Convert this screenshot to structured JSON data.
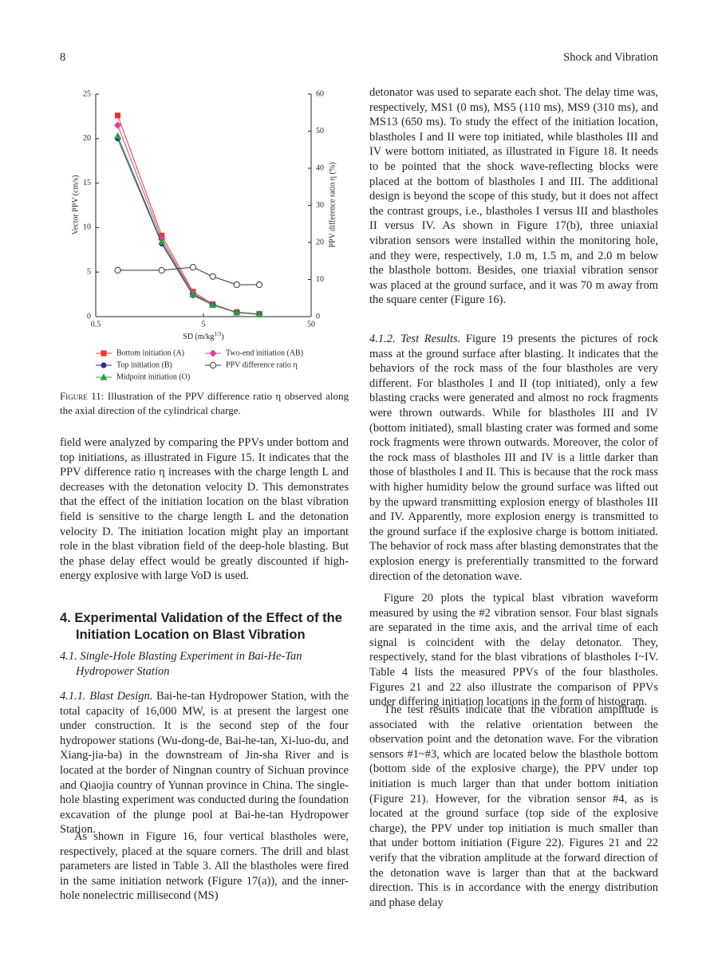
{
  "header": {
    "page_number": "8",
    "journal": "Shock and Vibration"
  },
  "chart_data": {
    "type": "line",
    "x_scale": "log",
    "y_label": "Vector PPV (cm/s)",
    "y2_label": "PPV difference ratio η (%)",
    "x_label": "SD (m/kg",
    "x_label_sup": "1/3",
    "x_label_end": ")",
    "x": [
      0.8,
      2.05,
      4.0,
      6.1,
      10.2,
      16.5
    ],
    "xlim": [
      0.5,
      50
    ],
    "xticks": [
      0.5,
      5,
      50
    ],
    "ylim": [
      0,
      25
    ],
    "yticks": [
      0,
      5,
      10,
      15,
      20,
      25
    ],
    "y2lim": [
      0,
      60
    ],
    "y2ticks": [
      0,
      10,
      20,
      30,
      40,
      50,
      60
    ],
    "series": [
      {
        "name": "Bottom initiation (A)",
        "color": "#e8372b",
        "marker": "square",
        "values": [
          22.6,
          9.1,
          2.8,
          1.4,
          0.5,
          0.3
        ]
      },
      {
        "name": "Two-end initiation (AB)",
        "color": "#e0409a",
        "marker": "diamond",
        "values": [
          21.5,
          8.7,
          2.6,
          1.35,
          0.48,
          0.28
        ]
      },
      {
        "name": "Top initiation (B)",
        "color": "#2b2f8a",
        "marker": "circle",
        "values": [
          20.0,
          8.2,
          2.4,
          1.3,
          0.45,
          0.25
        ]
      },
      {
        "name": "PPV difference ratio η",
        "color": "#333333",
        "marker": "open-circle",
        "axis": "y2",
        "values": [
          12.5,
          12.5,
          13.3,
          10.8,
          8.6,
          8.6
        ]
      },
      {
        "name": "Midpoint initiation (O)",
        "color": "#2e9e3e",
        "marker": "triangle",
        "values": [
          20.3,
          8.4,
          2.5,
          1.3,
          0.46,
          0.26
        ]
      }
    ]
  },
  "caption": {
    "label": "Figure 11:",
    "text": "Illustration of the PPV difference ratio η observed along the axial direction of the cylindrical charge."
  },
  "left": {
    "p1": "field were analyzed by comparing the PPVs under bottom and top initiations, as illustrated in Figure 15. It indicates that the PPV difference ratio η increases with the charge length L and decreases with the detonation velocity D. This demonstrates that the effect of the initiation location on the blast vibration field is sensitive to the charge length L and the detonation velocity D. The initiation location might play an important role in the blast vibration field of the deep-hole blasting. But the phase delay effect would be greatly discounted if high-energy explosive with large VoD is used.",
    "section": "4. Experimental Validation of the Effect of the Initiation Location on Blast Vibration",
    "subsection": "4.1. Single-Hole Blasting Experiment in Bai-He-Tan Hydropower Station",
    "sub2_title": "4.1.1. Blast Design.",
    "p2": "Bai-he-tan Hydropower Station, with the total capacity of 16,000 MW, is at present the largest one under construction. It is the second step of the four hydropower stations (Wu-dong-de, Bai-he-tan, Xi-luo-du, and Xiang-jia-ba) in the downstream of Jin-sha River and is located at the border of Ningnan country of Sichuan province and Qiaojia country of Yunnan province in China. The single-hole blasting experiment was conducted during the foundation excavation of the plunge pool at Bai-he-tan Hydropower Station.",
    "p3": "As shown in Figure 16, four vertical blastholes were, respectively, placed at the square corners. The drill and blast parameters are listed in Table 3. All the blastholes were fired in the same initiation network (Figure 17(a)), and the inner-hole nonelectric millisecond (MS)"
  },
  "right": {
    "p1": "detonator was used to separate each shot. The delay time was, respectively, MS1 (0 ms), MS5 (110 ms), MS9 (310 ms), and MS13 (650 ms). To study the effect of the initiation location, blastholes I and II were top initiated, while blastholes III and IV were bottom initiated, as illustrated in Figure 18. It needs to be pointed that the shock wave-reflecting blocks were placed at the bottom of blastholes I and III. The additional design is beyond the scope of this study, but it does not affect the contrast groups, i.e., blastholes I versus III and blastholes II versus IV. As shown in Figure 17(b), three uniaxial vibration sensors were installed within the monitoring hole, and they were, respectively, 1.0 m, 1.5 m, and 2.0 m below the blasthole bottom. Besides, one triaxial vibration sensor was placed at the ground surface, and it was 70 m away from the square center (Figure 16).",
    "sub_title": "4.1.2. Test Results.",
    "p2": "Figure 19 presents the pictures of rock mass at the ground surface after blasting. It indicates that the behaviors of the rock mass of the four blastholes are very different. For blastholes I and II (top initiated), only a few blasting cracks were generated and almost no rock fragments were thrown outwards. While for blastholes III and IV (bottom initiated), small blasting crater was formed and some rock fragments were thrown outwards. Moreover, the color of the rock mass of blastholes III and IV is a little darker than those of blastholes I and II. This is because that the rock mass with higher humidity below the ground surface was lifted out by the upward transmitting explosion energy of blastholes III and IV. Apparently, more explosion energy is transmitted to the ground surface if the explosive charge is bottom initiated. The behavior of rock mass after blasting demonstrates that the explosion energy is preferentially transmitted to the forward direction of the detonation wave.",
    "p3": "Figure 20 plots the typical blast vibration waveform measured by using the #2 vibration sensor. Four blast signals are separated in the time axis, and the arrival time of each signal is coincident with the delay detonator. They, respectively, stand for the blast vibrations of blastholes I~IV. Table 4 lists the measured PPVs of the four blastholes. Figures 21 and 22 also illustrate the comparison of PPVs under differing initiation locations in the form of histogram.",
    "p4": "The test results indicate that the vibration amplitude is associated with the relative orientation between the observation point and the detonation wave. For the vibration sensors #1~#3, which are located below the blasthole bottom (bottom side of the explosive charge), the PPV under top initiation is much larger than that under bottom initiation (Figure 21). However, for the vibration sensor #4, as is located at the ground surface (top side of the explosive charge), the PPV under top initiation is much smaller than that under bottom initiation (Figure 22). Figures 21 and 22 verify that the vibration amplitude at the forward direction of the detonation wave is larger than that at the backward direction. This is in accordance with the energy distribution and phase delay"
  }
}
